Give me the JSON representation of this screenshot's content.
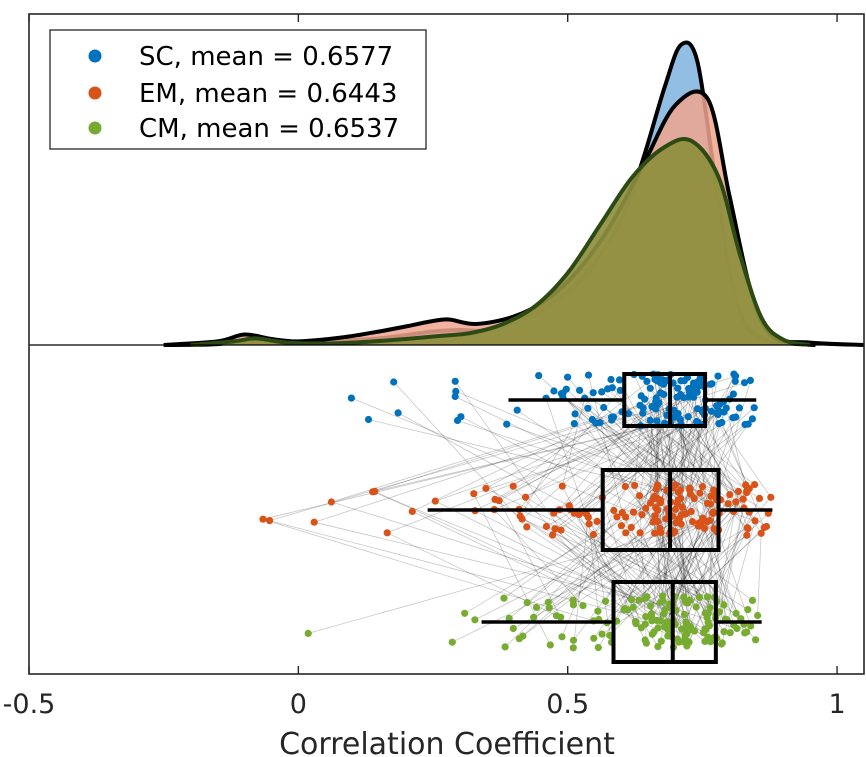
{
  "chart_data": {
    "type": "raincloud",
    "xlabel": "Correlation Coefficient",
    "xlim": [
      -0.5,
      1.05
    ],
    "xticks": [
      -0.5,
      0,
      0.5,
      1
    ],
    "xtick_labels": [
      "-0.5",
      "0",
      "0.5",
      "1"
    ],
    "grid": false,
    "legend_placement": "top-left",
    "series": [
      {
        "key": "SC",
        "name": "SC, mean = 0.6577",
        "color": "#0072BD",
        "fill": "#7FB3DE",
        "density_x": [
          -0.25,
          -0.15,
          -0.08,
          -0.02,
          0.05,
          0.15,
          0.25,
          0.3,
          0.35,
          0.42,
          0.48,
          0.54,
          0.6,
          0.64,
          0.68,
          0.71,
          0.74,
          0.77,
          0.8,
          0.83,
          0.87,
          0.92,
          0.96
        ],
        "density_y": [
          0,
          0.003,
          0.02,
          0.006,
          0.012,
          0.022,
          0.045,
          0.05,
          0.05,
          0.09,
          0.15,
          0.25,
          0.42,
          0.62,
          0.86,
          1.0,
          0.95,
          0.6,
          0.25,
          0.07,
          0.015,
          0.004,
          0
        ],
        "box": {
          "whisker_low": 0.39,
          "q1": 0.605,
          "median": 0.69,
          "q3": 0.755,
          "whisker_high": 0.85
        }
      },
      {
        "key": "EM",
        "name": "EM, mean = 0.6443",
        "color": "#D95319",
        "fill": "#EFA58F",
        "density_x": [
          -0.25,
          -0.15,
          -0.1,
          -0.05,
          0.0,
          0.08,
          0.15,
          0.2,
          0.25,
          0.28,
          0.33,
          0.4,
          0.46,
          0.52,
          0.58,
          0.64,
          0.7,
          0.76,
          0.8,
          0.84,
          0.88,
          0.95,
          1.05
        ],
        "density_y": [
          0,
          0.012,
          0.035,
          0.02,
          0.012,
          0.025,
          0.045,
          0.062,
          0.08,
          0.085,
          0.07,
          0.095,
          0.15,
          0.25,
          0.4,
          0.6,
          0.8,
          0.82,
          0.5,
          0.18,
          0.03,
          0.008,
          0
        ],
        "box": {
          "whisker_low": 0.24,
          "q1": 0.565,
          "median": 0.69,
          "q3": 0.78,
          "whisker_high": 0.88
        }
      },
      {
        "key": "CM",
        "name": "CM, mean = 0.6537",
        "color": "#77AC30",
        "fill": "#8D8F3E",
        "density_x": [
          -0.2,
          -0.12,
          -0.08,
          -0.02,
          0.05,
          0.12,
          0.2,
          0.26,
          0.32,
          0.38,
          0.44,
          0.5,
          0.56,
          0.62,
          0.68,
          0.73,
          0.78,
          0.82,
          0.86,
          0.9,
          0.95
        ],
        "density_y": [
          0,
          0.012,
          0.022,
          0.008,
          0.005,
          0.01,
          0.02,
          0.03,
          0.04,
          0.07,
          0.13,
          0.24,
          0.4,
          0.56,
          0.66,
          0.68,
          0.56,
          0.3,
          0.09,
          0.018,
          0
        ],
        "box": {
          "whisker_low": 0.34,
          "q1": 0.585,
          "median": 0.695,
          "q3": 0.775,
          "whisker_high": 0.86
        }
      }
    ]
  }
}
